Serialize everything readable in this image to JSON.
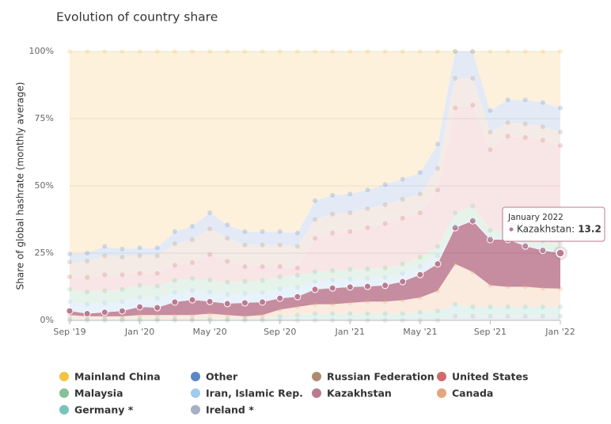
{
  "chart_data": {
    "type": "stacked_area",
    "title": "Evolution of country share",
    "y_label": "Share of global hashrate (monthly average)",
    "categories": [
      "Sep '19",
      null,
      null,
      null,
      "Jan '20",
      null,
      null,
      null,
      "May '20",
      null,
      null,
      null,
      "Sep '20",
      null,
      null,
      null,
      "Jan '21",
      null,
      null,
      null,
      "May '21",
      null,
      null,
      null,
      "Sep '21",
      null,
      null,
      null,
      "Jan '22"
    ],
    "ylim": [
      0,
      100
    ],
    "yticks": [
      {
        "value": 0,
        "label": "0%"
      },
      {
        "value": 25,
        "label": "25%"
      },
      {
        "value": 50,
        "label": "50%"
      },
      {
        "value": 75,
        "label": "75%"
      },
      {
        "value": 100,
        "label": "100%"
      }
    ],
    "grid": true,
    "series": [
      {
        "name": "Mainland China",
        "color": "#f5c342",
        "fill": "#fdf1dc",
        "values": [
          75.3,
          75,
          72.5,
          73.5,
          73,
          73,
          67,
          65,
          60,
          64.5,
          67,
          67,
          67,
          67.5,
          55.5,
          53.5,
          53,
          51.5,
          49.5,
          47.5,
          45,
          34.5,
          0,
          0,
          22,
          18,
          18,
          19,
          21
        ]
      },
      {
        "name": "Other",
        "color": "#5b86c4",
        "fill": "#e3eaf6",
        "values": [
          3,
          3,
          3.5,
          3,
          3,
          3,
          4.5,
          5,
          6,
          5,
          5,
          5,
          5,
          5,
          7,
          7,
          7,
          7,
          7.5,
          7.5,
          8,
          9,
          10,
          10,
          8,
          8.5,
          9,
          9,
          9
        ]
      },
      {
        "name": "Russian Federation",
        "color": "#b08a70",
        "fill": "#f5ebe6",
        "values": [
          5.5,
          6,
          7,
          6.5,
          6.5,
          6.5,
          8,
          8.5,
          9.5,
          8.5,
          8,
          8,
          8,
          8,
          7,
          7,
          7,
          7,
          7,
          7,
          7,
          8,
          11,
          10,
          6.5,
          5,
          5,
          5,
          5
        ]
      },
      {
        "name": "United States",
        "color": "#cf6b6b",
        "fill": "#f8e5e5",
        "values": [
          4.7,
          5.5,
          6,
          5.5,
          4.5,
          4.8,
          5.7,
          5.9,
          9.5,
          7.8,
          5.5,
          5.2,
          3.8,
          2.7,
          12.5,
          14,
          14.1,
          15.4,
          16.5,
          17.1,
          16.5,
          21,
          39.1,
          37.5,
          30,
          35,
          36.9,
          37.5,
          36.5
        ]
      },
      {
        "name": "Malaysia",
        "color": "#84c295",
        "fill": "#e6f3ea",
        "values": [
          4.5,
          4.5,
          4.5,
          4.5,
          4.5,
          4.5,
          4.5,
          4.5,
          4.5,
          4.5,
          4.5,
          4.5,
          4.5,
          4.5,
          3.5,
          3.5,
          3.5,
          3.5,
          3.5,
          3.5,
          3.5,
          3.5,
          5,
          5,
          3,
          3,
          3,
          3,
          3
        ]
      },
      {
        "name": "Iran, Islamic Rep.",
        "color": "#9fcbec",
        "fill": "#e8f2fb",
        "values": [
          3.5,
          3.5,
          3.5,
          3.5,
          3.5,
          3.5,
          3.5,
          3.5,
          3.5,
          3.5,
          3.5,
          3.5,
          3.5,
          3.5,
          3,
          3,
          3,
          3,
          3,
          3,
          3,
          3,
          0.5,
          0.5,
          0.5,
          0.5,
          0.5,
          0.5,
          0.5
        ]
      },
      {
        "name": "Kazakhstan",
        "color": "#b97b92",
        "fill": "#c68c9f",
        "values": [
          1.5,
          1,
          1.5,
          2,
          3,
          2.7,
          4.8,
          5.6,
          4.5,
          4.2,
          5,
          4.8,
          4.2,
          3.8,
          5.5,
          6,
          5.9,
          5.6,
          6,
          6.9,
          8.5,
          10,
          13.4,
          19,
          17,
          17.5,
          15.1,
          14,
          13.2
        ]
      },
      {
        "name": "Canada",
        "color": "#e6a47a",
        "fill": "#fbebdf",
        "values": [
          1.5,
          1,
          1,
          1,
          1.5,
          1.5,
          1.5,
          1.5,
          2,
          1.5,
          1,
          1.5,
          2.5,
          3,
          3.5,
          3.5,
          4,
          4.5,
          4.5,
          5,
          5.5,
          7.5,
          15,
          13,
          8,
          7.5,
          7.5,
          7,
          6.8
        ]
      },
      {
        "name": "Germany *",
        "color": "#7ac3ba",
        "fill": "#e4f3f0",
        "values": [
          0.5,
          0.5,
          0.5,
          0.5,
          0.5,
          0.5,
          0.5,
          0.5,
          0.5,
          0.5,
          0.5,
          0.5,
          1.5,
          2,
          2.5,
          2.5,
          2.5,
          2.5,
          2.5,
          2.5,
          3,
          3.5,
          4.5,
          3.5,
          3.5,
          3.5,
          3.5,
          3.5,
          3.5
        ]
      },
      {
        "name": "Ireland *",
        "color": "#a9afc3",
        "fill": "#eceef3",
        "values": [
          0,
          0,
          0,
          0,
          0,
          0,
          0,
          0,
          0,
          0,
          0,
          0,
          0,
          0,
          0,
          0,
          0,
          0,
          0,
          0,
          0,
          0,
          1.5,
          1.5,
          1.5,
          1.5,
          1.5,
          1.5,
          1.5
        ]
      }
    ],
    "tooltip": {
      "title": "January 2022",
      "label": "Kazakhstan:"
    }
  }
}
